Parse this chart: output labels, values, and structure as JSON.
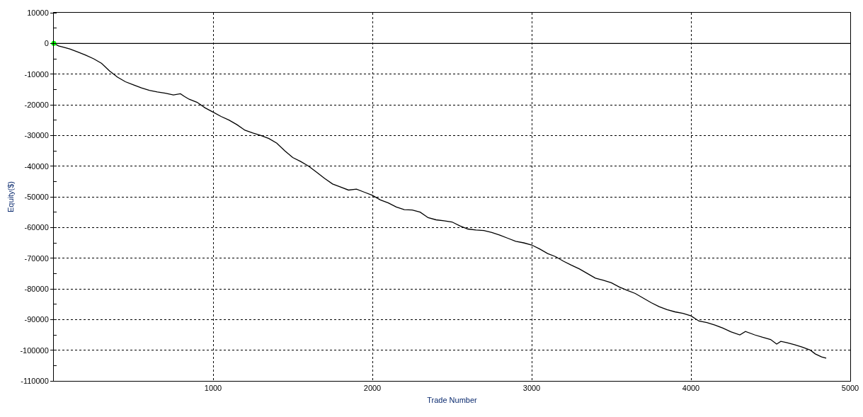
{
  "chart_data": {
    "type": "line",
    "xlabel": "Trade Number",
    "ylabel": "Equity($)",
    "xlim": [
      0,
      5000
    ],
    "xticks": [
      1000,
      2000,
      3000,
      4000,
      5000
    ],
    "ylim": [
      -110000,
      10000
    ],
    "yticks": [
      -110000,
      -100000,
      -90000,
      -80000,
      -70000,
      -60000,
      -50000,
      -40000,
      -30000,
      -20000,
      -10000,
      0,
      10000
    ],
    "grid": true,
    "line_style": "solid",
    "ref_lines": [
      {
        "axis": "y",
        "value": 0,
        "color": "#000000",
        "line_style": "solid"
      }
    ],
    "series": [
      {
        "color": "#000000",
        "marker": "none",
        "x": [
          0,
          30,
          60,
          100,
          150,
          200,
          250,
          300,
          350,
          400,
          450,
          500,
          550,
          600,
          650,
          700,
          751,
          795,
          820,
          850,
          900,
          950,
          1000,
          1050,
          1100,
          1150,
          1200,
          1250,
          1300,
          1350,
          1400,
          1450,
          1500,
          1550,
          1600,
          1650,
          1700,
          1750,
          1800,
          1850,
          1900,
          1950,
          2000,
          2050,
          2100,
          2150,
          2200,
          2250,
          2300,
          2350,
          2400,
          2450,
          2500,
          2550,
          2600,
          2650,
          2700,
          2750,
          2800,
          2850,
          2900,
          2950,
          3000,
          3050,
          3100,
          3150,
          3200,
          3250,
          3300,
          3350,
          3400,
          3450,
          3500,
          3550,
          3600,
          3650,
          3700,
          3750,
          3800,
          3850,
          3900,
          3950,
          4000,
          4050,
          4100,
          4150,
          4200,
          4250,
          4307,
          4342,
          4400,
          4450,
          4500,
          4538,
          4564,
          4600,
          4650,
          4700,
          4750,
          4780,
          4820,
          4849
        ],
        "values": [
          0,
          -800,
          -1200,
          -1800,
          -2800,
          -3800,
          -5000,
          -6500,
          -9000,
          -11000,
          -12500,
          -13500,
          -14500,
          -15300,
          -15800,
          -16200,
          -16800,
          -16400,
          -17300,
          -18200,
          -19200,
          -21000,
          -22400,
          -23800,
          -25000,
          -26500,
          -28300,
          -29200,
          -30000,
          -31000,
          -32500,
          -35000,
          -37200,
          -38500,
          -40000,
          -42000,
          -44000,
          -45800,
          -46800,
          -47800,
          -47500,
          -48500,
          -49500,
          -51000,
          -52000,
          -53300,
          -54200,
          -54300,
          -55000,
          -56800,
          -57500,
          -57800,
          -58200,
          -59500,
          -60500,
          -60800,
          -61000,
          -61600,
          -62500,
          -63500,
          -64500,
          -65000,
          -65700,
          -67000,
          -68500,
          -69500,
          -71000,
          -72300,
          -73500,
          -75000,
          -76500,
          -77200,
          -78000,
          -79400,
          -80500,
          -81500,
          -83000,
          -84500,
          -85800,
          -86800,
          -87500,
          -88000,
          -88800,
          -90500,
          -91000,
          -91800,
          -92800,
          -94000,
          -95000,
          -93900,
          -95000,
          -95800,
          -96500,
          -98000,
          -97100,
          -97500,
          -98200,
          -99000,
          -100000,
          -101200,
          -102200,
          -102600
        ]
      },
      {
        "type": "scatter",
        "color": "#00ff00",
        "marker": "circle",
        "x": [
          0
        ],
        "values": [
          0
        ]
      }
    ]
  }
}
